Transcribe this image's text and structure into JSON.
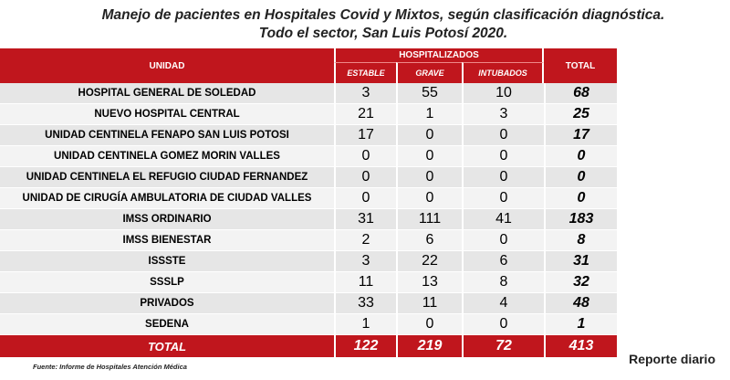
{
  "title_line1": "Manejo de pacientes en Hospitales Covid y Mixtos, según clasificación diagnóstica.",
  "title_line2": "Todo el sector, San Luis Potosí 2020.",
  "headers": {
    "unidad": "UNIDAD",
    "hospitalizados": "HOSPITALIZADOS",
    "estable": "ESTABLE",
    "grave": "GRAVE",
    "intubados": "INTUBADOS",
    "total": "TOTAL"
  },
  "rows": [
    {
      "unidad": "HOSPITAL GENERAL DE SOLEDAD",
      "estable": "3",
      "grave": "55",
      "intubados": "10",
      "total": "68"
    },
    {
      "unidad": "NUEVO HOSPITAL CENTRAL",
      "estable": "21",
      "grave": "1",
      "intubados": "3",
      "total": "25"
    },
    {
      "unidad": "UNIDAD CENTINELA FENAPO SAN LUIS POTOSI",
      "estable": "17",
      "grave": "0",
      "intubados": "0",
      "total": "17"
    },
    {
      "unidad": "UNIDAD CENTINELA GOMEZ MORIN VALLES",
      "estable": "0",
      "grave": "0",
      "intubados": "0",
      "total": "0"
    },
    {
      "unidad": "UNIDAD CENTINELA EL REFUGIO CIUDAD FERNANDEZ",
      "estable": "0",
      "grave": "0",
      "intubados": "0",
      "total": "0"
    },
    {
      "unidad": "UNIDAD DE CIRUGÍA AMBULATORIA DE CIUDAD VALLES",
      "estable": "0",
      "grave": "0",
      "intubados": "0",
      "total": "0"
    },
    {
      "unidad": "IMSS ORDINARIO",
      "estable": "31",
      "grave": "111",
      "intubados": "41",
      "total": "183"
    },
    {
      "unidad": "IMSS BIENESTAR",
      "estable": "2",
      "grave": "6",
      "intubados": "0",
      "total": "8"
    },
    {
      "unidad": "ISSSTE",
      "estable": "3",
      "grave": "22",
      "intubados": "6",
      "total": "31"
    },
    {
      "unidad": "SSSLP",
      "estable": "11",
      "grave": "13",
      "intubados": "8",
      "total": "32"
    },
    {
      "unidad": "PRIVADOS",
      "estable": "33",
      "grave": "11",
      "intubados": "4",
      "total": "48"
    },
    {
      "unidad": "SEDENA",
      "estable": "1",
      "grave": "0",
      "intubados": "0",
      "total": "1"
    }
  ],
  "totals": {
    "label": "TOTAL",
    "estable": "122",
    "grave": "219",
    "intubados": "72",
    "total": "413"
  },
  "source": "Fuente: Informe de Hospitales Atención Médica",
  "report_label": "Reporte diario",
  "colors": {
    "header_red": "#c0161d",
    "row_odd": "#e6e6e6",
    "row_even": "#f3f3f3"
  }
}
